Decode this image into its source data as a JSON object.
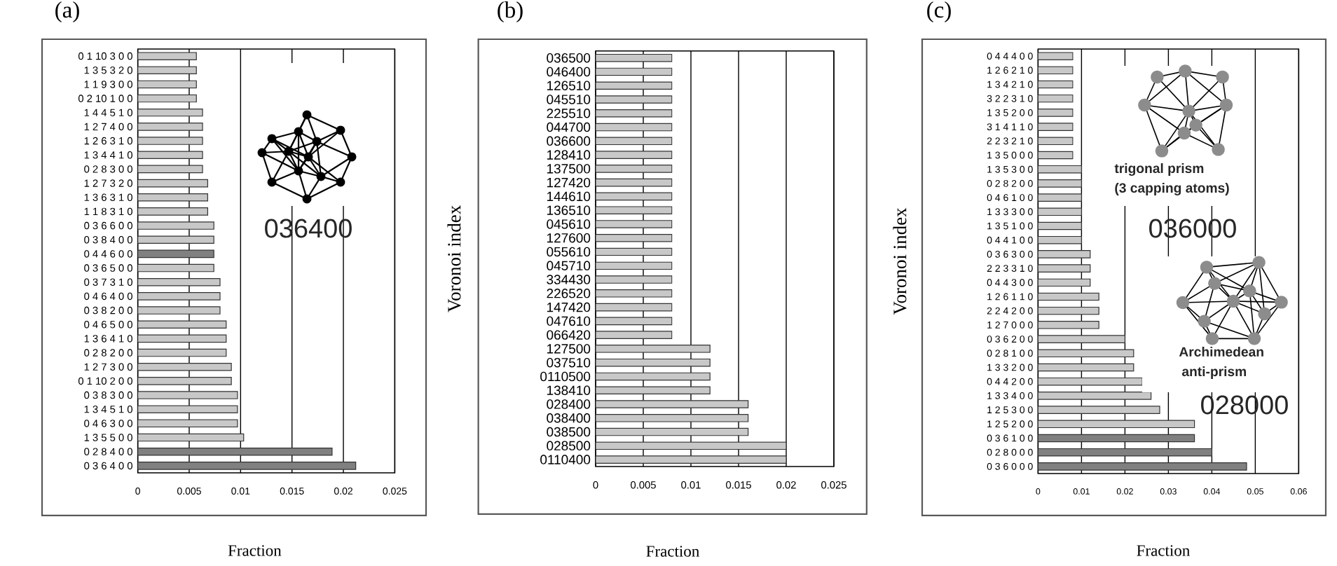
{
  "chart_data": [
    {
      "type": "bar",
      "orientation": "horizontal",
      "title": "(a)",
      "xlabel": "Fraction",
      "categories": [
        "0 1 10 3 0 0",
        "1 3 5 3 2 0",
        "1 1 9 3 0 0",
        "0 2 10 1 0 0",
        "1 4 4 5 1 0",
        "1 2 7 4 0 0",
        "1 2 6 3 1 0",
        "1 3 4 4 1 0",
        "0 2 8 3 0 0",
        "1 2 7 3 2 0",
        "1 3 6 3 1 0",
        "1 1 8 3 1 0",
        "0 3 6 6 0 0",
        "0 3 8 4 0 0",
        "0 4 4 6 0 0",
        "0 3 6 5 0 0",
        "0 3 7 3 1 0",
        "0 4 6 4 0 0",
        "0 3 8 2 0 0",
        "0 4 6 5 0 0",
        "1 3 6 4 1 0",
        "0 2 8 2 0 0",
        "1 2 7 3 0 0",
        "0 1 10 2 0 0",
        "0 3 8 3 0 0",
        "1 3 4 5 1 0",
        "0 4 6 3 0 0",
        "1 3 5 5 0 0",
        "0 2 8 4 0 0",
        "0 3 6 4 0 0"
      ],
      "values": [
        0.0057,
        0.0057,
        0.0057,
        0.0057,
        0.0063,
        0.0063,
        0.0063,
        0.0063,
        0.0063,
        0.0068,
        0.0068,
        0.0068,
        0.0074,
        0.0074,
        0.0074,
        0.0074,
        0.008,
        0.008,
        0.008,
        0.0086,
        0.0086,
        0.0086,
        0.0091,
        0.0091,
        0.0097,
        0.0097,
        0.0097,
        0.0103,
        0.0189,
        0.0212
      ],
      "colors": [
        "#c8c8c8",
        "#c8c8c8",
        "#c8c8c8",
        "#c8c8c8",
        "#c8c8c8",
        "#c8c8c8",
        "#c8c8c8",
        "#c8c8c8",
        "#c8c8c8",
        "#c8c8c8",
        "#c8c8c8",
        "#c8c8c8",
        "#c8c8c8",
        "#c8c8c8",
        "#808080",
        "#c8c8c8",
        "#c8c8c8",
        "#c8c8c8",
        "#c8c8c8",
        "#c8c8c8",
        "#c8c8c8",
        "#c8c8c8",
        "#c8c8c8",
        "#c8c8c8",
        "#c8c8c8",
        "#c8c8c8",
        "#c8c8c8",
        "#c8c8c8",
        "#808080",
        "#808080"
      ],
      "xlim": [
        0,
        0.025
      ],
      "xticks": [
        0,
        0.005,
        0.01,
        0.015,
        0.02,
        0.025
      ],
      "grid": "x",
      "annotations": [
        "036400"
      ]
    },
    {
      "type": "bar",
      "orientation": "horizontal",
      "title": "(b)",
      "xlabel": "Fraction",
      "ylabel": "Voronoi index",
      "categories": [
        "036500",
        "046400",
        "126510",
        "045510",
        "225510",
        "044700",
        "036600",
        "128410",
        "137500",
        "127420",
        "144610",
        "136510",
        "045610",
        "127600",
        "055610",
        "045710",
        "334430",
        "226520",
        "147420",
        "047610",
        "066420",
        "127500",
        "037510",
        "0110500",
        "138410",
        "028400",
        "038400",
        "038500",
        "028500",
        "0110400"
      ],
      "values": [
        0.008,
        0.008,
        0.008,
        0.008,
        0.008,
        0.008,
        0.008,
        0.008,
        0.008,
        0.008,
        0.008,
        0.008,
        0.008,
        0.008,
        0.008,
        0.008,
        0.008,
        0.008,
        0.008,
        0.008,
        0.008,
        0.012,
        0.012,
        0.012,
        0.012,
        0.016,
        0.016,
        0.016,
        0.02,
        0.02
      ],
      "colors": [
        "#c8c8c8",
        "#c8c8c8",
        "#c8c8c8",
        "#c8c8c8",
        "#c8c8c8",
        "#c8c8c8",
        "#c8c8c8",
        "#c8c8c8",
        "#c8c8c8",
        "#c8c8c8",
        "#c8c8c8",
        "#c8c8c8",
        "#c8c8c8",
        "#c8c8c8",
        "#c8c8c8",
        "#c8c8c8",
        "#c8c8c8",
        "#c8c8c8",
        "#c8c8c8",
        "#c8c8c8",
        "#c8c8c8",
        "#c8c8c8",
        "#c8c8c8",
        "#c8c8c8",
        "#c8c8c8",
        "#c8c8c8",
        "#c8c8c8",
        "#c8c8c8",
        "#c8c8c8",
        "#c8c8c8"
      ],
      "xlim": [
        0,
        0.025
      ],
      "xticks": [
        0,
        0.005,
        0.01,
        0.015,
        0.02,
        0.025
      ],
      "grid": "x"
    },
    {
      "type": "bar",
      "orientation": "horizontal",
      "title": "(c)",
      "xlabel": "Fraction",
      "ylabel": "Voronoi index",
      "categories": [
        "0 4 4 4 0 0",
        "1 2 6 2 1 0",
        "1 3 4 2 1 0",
        "3 2 2 3 1 0",
        "1 3 5 2 0 0",
        "3 1 4 1 1 0",
        "2 2 3 2 1 0",
        "1 3 5 0 0 0",
        "1 3 5 3 0 0",
        "0 2 8 2 0 0",
        "0 4 6 1 0 0",
        "1 3 3 3 0 0",
        "1 3 5 1 0 0",
        "0 4 4 1 0 0",
        "0 3 6 3 0 0",
        "2 2 3 3 1 0",
        "0 4 4 3 0 0",
        "1 2 6 1 1 0",
        "2 2 4 2 0 0",
        "1 2 7 0 0 0",
        "0 3 6 2 0 0",
        "0 2 8 1 0 0",
        "1 3 3 2 0 0",
        "0 4 4 2 0 0",
        "1 3 3 4 0 0",
        "1 2 5 3 0 0",
        "1 2 5 2 0 0",
        "0 3 6 1 0 0",
        "0 2 8 0 0 0",
        "0 3 6 0 0 0"
      ],
      "values": [
        0.008,
        0.008,
        0.008,
        0.008,
        0.008,
        0.008,
        0.008,
        0.008,
        0.01,
        0.01,
        0.01,
        0.01,
        0.01,
        0.01,
        0.012,
        0.012,
        0.012,
        0.014,
        0.014,
        0.014,
        0.02,
        0.022,
        0.022,
        0.024,
        0.026,
        0.028,
        0.036,
        0.036,
        0.04,
        0.048
      ],
      "colors": [
        "#c8c8c8",
        "#c8c8c8",
        "#c8c8c8",
        "#c8c8c8",
        "#c8c8c8",
        "#c8c8c8",
        "#c8c8c8",
        "#c8c8c8",
        "#c8c8c8",
        "#c8c8c8",
        "#c8c8c8",
        "#c8c8c8",
        "#c8c8c8",
        "#c8c8c8",
        "#c8c8c8",
        "#c8c8c8",
        "#c8c8c8",
        "#c8c8c8",
        "#c8c8c8",
        "#c8c8c8",
        "#c8c8c8",
        "#c8c8c8",
        "#c8c8c8",
        "#c8c8c8",
        "#c8c8c8",
        "#c8c8c8",
        "#c8c8c8",
        "#808080",
        "#808080",
        "#808080"
      ],
      "xlim": [
        0,
        0.06
      ],
      "xticks": [
        0,
        0.01,
        0.02,
        0.03,
        0.04,
        0.05,
        0.06
      ],
      "grid": "x",
      "annotations": [
        "trigonal prism",
        "(3 capping atoms)",
        "036000",
        "Archimedean",
        "anti-prism",
        "028000"
      ]
    }
  ]
}
